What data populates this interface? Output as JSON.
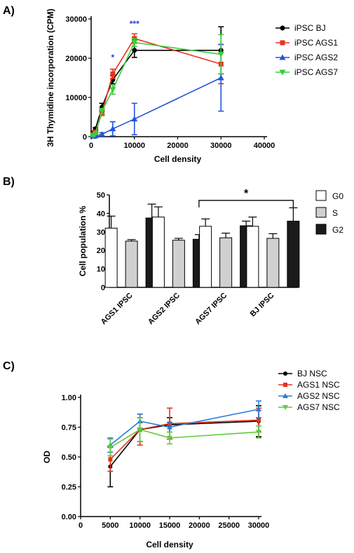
{
  "panels": [
    {
      "letter": "A)",
      "chart_data": {
        "type": "line",
        "xlabel": "Cell density",
        "ylabel": "3H Thymidine incorporation (CPM)",
        "xlim": [
          0,
          40000
        ],
        "ylim": [
          0,
          30000
        ],
        "xticks": [
          "0",
          "10000",
          "20000",
          "30000",
          "40000"
        ],
        "yticks": [
          "0",
          "10000",
          "20000",
          "30000"
        ],
        "legend_position": "right",
        "series": [
          {
            "name": "iPSC BJ",
            "color": "#000000",
            "marker": "circle",
            "x": [
              500,
              1000,
              2500,
              5000,
              10000,
              30000
            ],
            "y": [
              1000,
              2000,
              7500,
              14500,
              22000,
              22000
            ],
            "err": [
              300,
              300,
              1000,
              1000,
              1800,
              6000
            ]
          },
          {
            "name": "iPSC AGS1",
            "color": "#e8321e",
            "marker": "square",
            "x": [
              500,
              1000,
              2500,
              5000,
              10000,
              30000
            ],
            "y": [
              500,
              1200,
              6000,
              16000,
              25000,
              18500
            ],
            "err": [
              300,
              300,
              600,
              1200,
              1200,
              5000
            ]
          },
          {
            "name": "iPSC AGS2",
            "color": "#2255dd",
            "marker": "triangle-up",
            "x": [
              500,
              1000,
              2500,
              5000,
              10000,
              30000
            ],
            "y": [
              100,
              200,
              600,
              2000,
              4500,
              15000
            ],
            "err": [
              100,
              100,
              400,
              1800,
              4000,
              8500
            ]
          },
          {
            "name": "iPSC AGS7",
            "color": "#3dcc3d",
            "marker": "triangle-down",
            "x": [
              500,
              1000,
              2500,
              5000,
              10000,
              30000
            ],
            "y": [
              300,
              800,
              6500,
              12000,
              24000,
              21000
            ],
            "err": [
              200,
              300,
              700,
              1200,
              1000,
              5000
            ]
          }
        ],
        "annotations": [
          {
            "text": "*",
            "x": 5000,
            "y": 19500
          },
          {
            "text": "***",
            "x": 10000,
            "y": 28000
          }
        ]
      }
    },
    {
      "letter": "B)",
      "chart_data": {
        "type": "bar",
        "ylabel": "Cell population %",
        "ylim": [
          0,
          50
        ],
        "yticks": [
          "0",
          "10",
          "20",
          "30",
          "40",
          "50"
        ],
        "categories": [
          "AGS1 IPSC",
          "AGS2 IPSC",
          "AGS7 IPSC",
          "BJ IPSC"
        ],
        "legend_position": "right",
        "series": [
          {
            "name": "G0",
            "color": "#ffffff",
            "values": [
              32,
              38,
              33,
              33
            ],
            "err": [
              6.5,
              5.5,
              4,
              5
            ]
          },
          {
            "name": "S",
            "color": "#d0d0d0",
            "values": [
              25,
              25.5,
              26.8,
              26.5
            ],
            "err": [
              0.8,
              1,
              2.5,
              2.5
            ]
          },
          {
            "name": "G2",
            "color": "#1a1a1a",
            "values": [
              37.5,
              26,
              33.3,
              35.8
            ],
            "err": [
              7.5,
              2.5,
              2.5,
              7.2
            ]
          }
        ],
        "annotations": [
          {
            "text": "*",
            "from": "AGS2 IPSC",
            "to": "BJ IPSC",
            "y": 47
          }
        ]
      }
    },
    {
      "letter": "C)",
      "chart_data": {
        "type": "line",
        "xlabel": "Cell density",
        "ylabel": "OD",
        "xlim": [
          0,
          30000
        ],
        "ylim": [
          0,
          1.0
        ],
        "xticks": [
          "0",
          "5000",
          "10000",
          "15000",
          "20000",
          "25000",
          "30000"
        ],
        "yticks": [
          "0.00",
          "0.25",
          "0.50",
          "0.75",
          "1.00"
        ],
        "legend_position": "top-right",
        "series": [
          {
            "name": "BJ  NSC",
            "color": "#000000",
            "marker": "circle",
            "x": [
              5000,
              10000,
              15000,
              30000
            ],
            "y": [
              0.42,
              0.73,
              0.77,
              0.8
            ],
            "err": [
              0.17,
              0.1,
              0.06,
              0.13
            ]
          },
          {
            "name": "AGS1 NSC",
            "color": "#e8321e",
            "marker": "square",
            "x": [
              5000,
              10000,
              15000,
              30000
            ],
            "y": [
              0.48,
              0.73,
              0.78,
              0.81
            ],
            "err": [
              0.1,
              0.13,
              0.13,
              0.1
            ]
          },
          {
            "name": "AGS2 NSC",
            "color": "#2b7cd6",
            "marker": "triangle-up",
            "x": [
              5000,
              10000,
              15000,
              30000
            ],
            "y": [
              0.6,
              0.8,
              0.75,
              0.9
            ],
            "err": [
              0.06,
              0.06,
              0.04,
              0.07
            ]
          },
          {
            "name": "AGS7 NSC",
            "color": "#5fcc3a",
            "marker": "triangle-down",
            "x": [
              5000,
              10000,
              15000,
              30000
            ],
            "y": [
              0.58,
              0.73,
              0.66,
              0.71
            ],
            "err": [
              0.07,
              0.1,
              0.05,
              0.05
            ]
          }
        ]
      }
    }
  ]
}
